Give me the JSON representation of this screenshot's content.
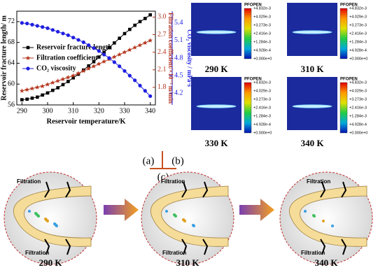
{
  "chart_data": {
    "type": "line",
    "xlabel": "Reservoir temperature/K",
    "ylabel": "Reservoir fracture length/ m",
    "y2label": "Filtration coefficient/×10⁻² m/min",
    "y3label": "CO₂ viscosity / mPa·s",
    "x": [
      290,
      292,
      294,
      296,
      298,
      300,
      302,
      304,
      306,
      308,
      310,
      312,
      314,
      316,
      318,
      320,
      322,
      324,
      326,
      328,
      330,
      332,
      334,
      336,
      338,
      340
    ],
    "series": [
      {
        "name": "Reservoir fracture length",
        "color": "#000000",
        "marker": "square",
        "values": [
          57,
          57.1,
          57.3,
          57.5,
          57.9,
          58.3,
          58.8,
          59.3,
          59.9,
          60.5,
          61.2,
          61.9,
          62.7,
          63.5,
          64.3,
          65.2,
          66.1,
          67.0,
          67.9,
          68.8,
          69.7,
          70.5,
          71.3,
          72.0,
          72.6,
          73.3
        ]
      },
      {
        "name": "Filtration coefficient",
        "color": "#b5371f",
        "marker": "star",
        "axis": "y2",
        "values": [
          1.74,
          1.76,
          1.78,
          1.8,
          1.82,
          1.85,
          1.88,
          1.91,
          1.94,
          1.97,
          2.0,
          2.04,
          2.08,
          2.12,
          2.16,
          2.2,
          2.24,
          2.28,
          2.32,
          2.36,
          2.4,
          2.44,
          2.48,
          2.52,
          2.56,
          2.6
        ]
      },
      {
        "name": "CO₂ viscosity",
        "color": "#1f1fe0",
        "marker": "circle",
        "axis": "y3",
        "values": [
          5.4,
          5.39,
          5.37,
          5.35,
          5.33,
          5.31,
          5.28,
          5.25,
          5.22,
          5.19,
          5.15,
          5.11,
          5.07,
          5.02,
          4.97,
          4.92,
          4.86,
          4.8,
          4.73,
          4.66,
          4.58,
          4.5,
          4.42,
          4.33,
          4.24,
          4.15
        ]
      }
    ],
    "xlim": [
      288,
      342
    ],
    "xticks": [
      290,
      300,
      310,
      320,
      330,
      340
    ],
    "ylim": [
      56,
      74
    ],
    "yticks": [
      56,
      60,
      64,
      68,
      72
    ],
    "y2lim": [
      1.5,
      3.1
    ],
    "y2ticks": [
      1.8,
      2.1,
      2.4,
      2.7,
      {
        "value": 3,
        "label": "3.0"
      }
    ],
    "y3lim": [
      4.0,
      5.6
    ],
    "y3ticks": [
      4.2,
      4.5,
      4.8,
      5.1,
      5.4
    ],
    "legend": "upper-left"
  },
  "simulation": {
    "colorbar_title": "PFOPEN",
    "colorbar_labels": [
      "+4.832e-3",
      "+4.029e-3",
      "+3.273e-3",
      "+2.416e-3",
      "+1.284e-3",
      "+4.928e-4",
      "+0.000e+0"
    ],
    "temperatures": [
      "290 K",
      "310 K",
      "330 K",
      "340 K"
    ]
  },
  "panel_labels": [
    "(a)",
    "(b)",
    "(c)"
  ],
  "schematic": {
    "filtration_label": "Filtration",
    "temperatures": [
      "290 K",
      "310 K",
      "340 K"
    ]
  }
}
